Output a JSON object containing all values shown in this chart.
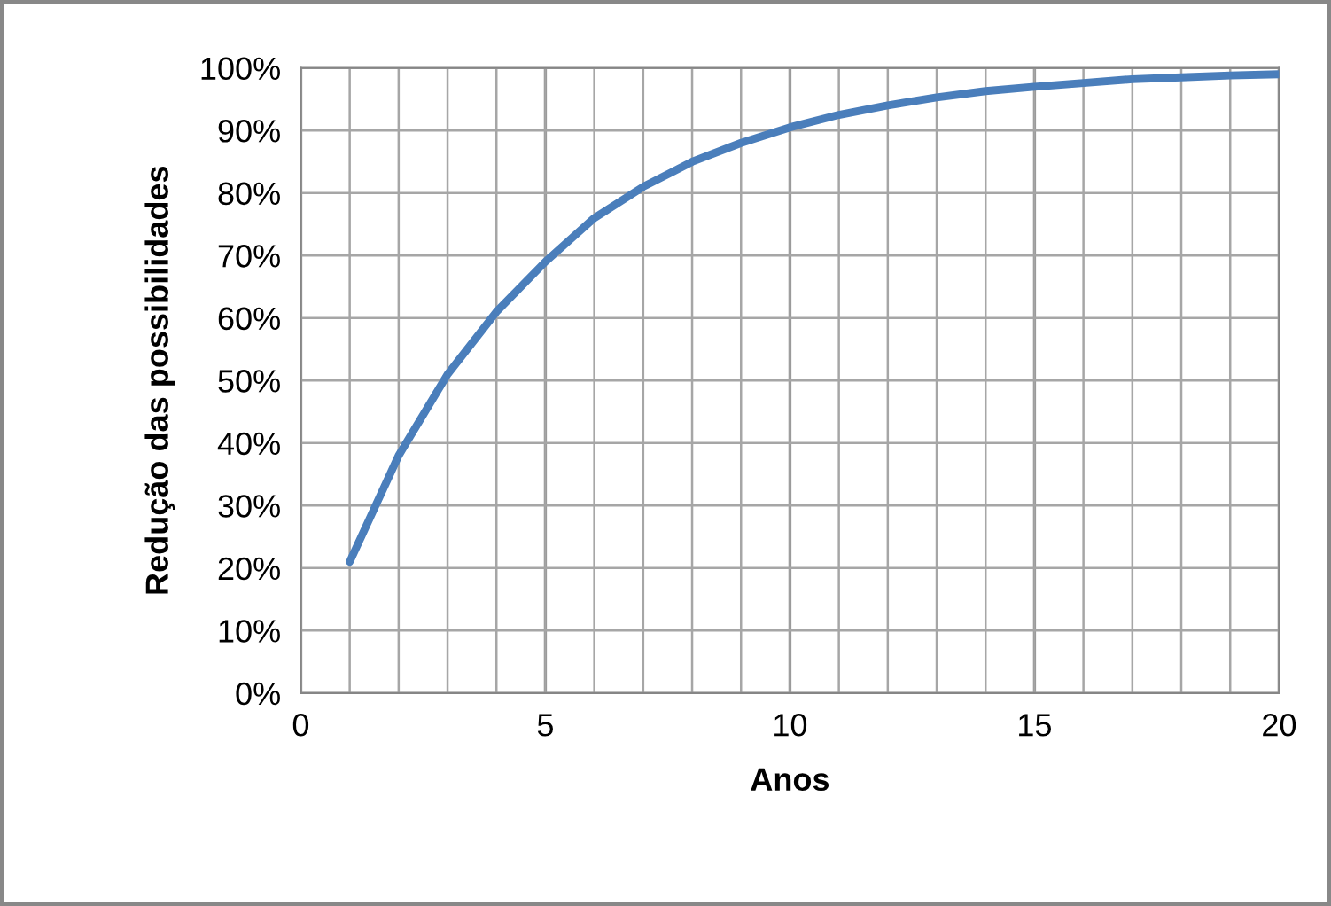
{
  "chart_data": {
    "type": "line",
    "xlabel": "Anos",
    "ylabel": "Redução das possibilidades",
    "x": [
      1,
      2,
      3,
      4,
      5,
      6,
      7,
      8,
      9,
      10,
      11,
      12,
      13,
      14,
      15,
      16,
      17,
      18,
      19,
      20
    ],
    "series": [
      {
        "color": "#4a7ebb",
        "values": [
          21,
          38,
          51,
          61,
          69,
          76,
          81,
          85,
          88,
          90.5,
          92.5,
          94,
          95.3,
          96.3,
          97,
          97.6,
          98.2,
          98.5,
          98.8,
          99
        ]
      }
    ],
    "xlim": [
      0,
      20
    ],
    "ylim": [
      0,
      100
    ],
    "xticks": [
      0,
      {
        "value": 1,
        "label": null
      },
      {
        "value": 2,
        "label": null
      },
      {
        "value": 3,
        "label": null
      },
      {
        "value": 4,
        "label": null
      },
      5,
      {
        "value": 6,
        "label": null
      },
      {
        "value": 7,
        "label": null
      },
      {
        "value": 8,
        "label": null
      },
      {
        "value": 9,
        "label": null
      },
      10,
      {
        "value": 11,
        "label": null
      },
      {
        "value": 12,
        "label": null
      },
      {
        "value": 13,
        "label": null
      },
      {
        "value": 14,
        "label": null
      },
      15,
      {
        "value": 16,
        "label": null
      },
      {
        "value": 17,
        "label": null
      },
      {
        "value": 18,
        "label": null
      },
      {
        "value": 19,
        "label": null
      },
      20
    ],
    "yticks": [
      {
        "value": 0,
        "label": "0%"
      },
      {
        "value": 10,
        "label": "10%"
      },
      {
        "value": 20,
        "label": "20%"
      },
      {
        "value": 30,
        "label": "30%"
      },
      {
        "value": 40,
        "label": "40%"
      },
      {
        "value": 50,
        "label": "50%"
      },
      {
        "value": 60,
        "label": "60%"
      },
      {
        "value": 70,
        "label": "70%"
      },
      {
        "value": 80,
        "label": "80%"
      },
      {
        "value": 90,
        "label": "90%"
      },
      {
        "value": 100,
        "label": "100%"
      }
    ],
    "grid": true,
    "marker": "none",
    "line_style": "solid",
    "legend": false
  }
}
